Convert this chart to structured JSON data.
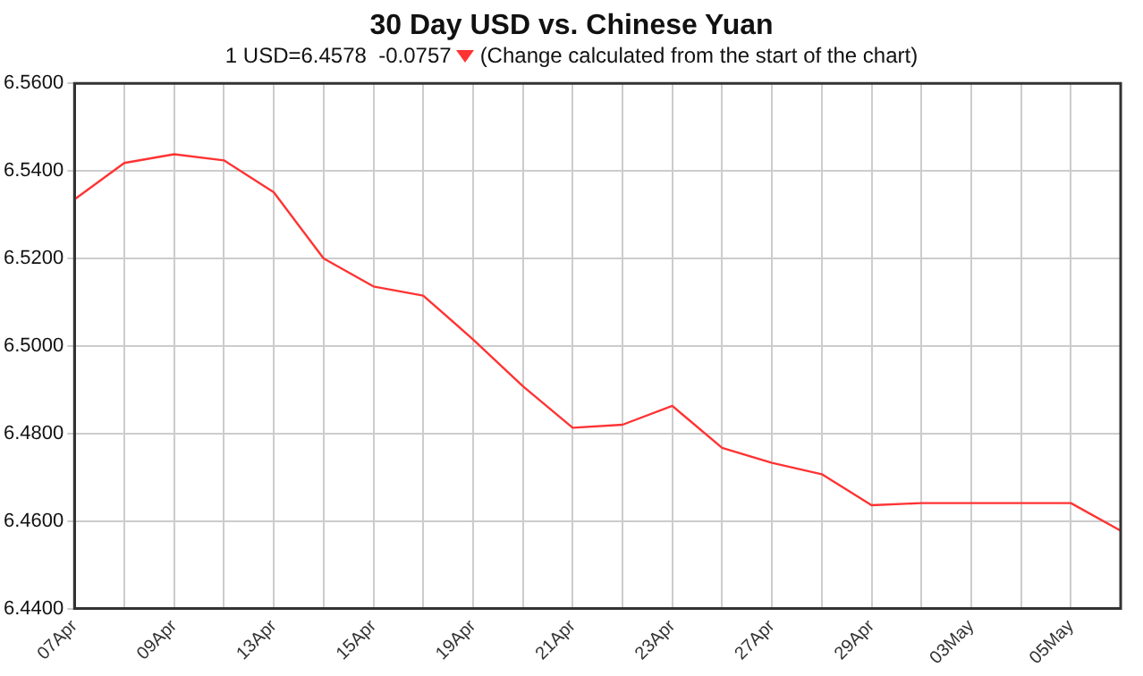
{
  "chart_data": {
    "type": "line",
    "title": "30 Day USD vs. Chinese Yuan",
    "subtitle": "1 USD=6.4578  -0.0757",
    "annotations": [
      "(Change calculated from the start of the chart)"
    ],
    "categories": [
      "07Apr",
      null,
      "09Apr",
      null,
      "13Apr",
      null,
      "15Apr",
      null,
      "19Apr",
      null,
      "21Apr",
      null,
      "23Apr",
      null,
      "27Apr",
      null,
      "29Apr",
      null,
      "03May",
      null,
      "05May",
      null
    ],
    "series": [
      {
        "color": "#ff3333",
        "values": [
          6.5335,
          6.5418,
          6.5438,
          6.5424,
          6.5351,
          6.52,
          6.5136,
          6.5115,
          6.5015,
          6.4908,
          6.4813,
          6.482,
          6.4863,
          6.4767,
          6.4733,
          6.4707,
          6.4636,
          6.4641,
          6.4641,
          6.4641,
          6.4641,
          6.4578
        ]
      }
    ],
    "ylim": [
      6.44,
      6.56
    ],
    "yticks": [
      {
        "value": 6.44,
        "label": "6.4400"
      },
      {
        "value": 6.46,
        "label": "6.4600"
      },
      {
        "value": 6.48,
        "label": "6.4800"
      },
      {
        "value": 6.5,
        "label": "6.5000"
      },
      {
        "value": 6.52,
        "label": "6.5200"
      },
      {
        "value": 6.54,
        "label": "6.5400"
      },
      {
        "value": 6.56,
        "label": "6.5600"
      }
    ],
    "grid": true,
    "legend": false,
    "marker": "none",
    "line_style": "solid"
  }
}
